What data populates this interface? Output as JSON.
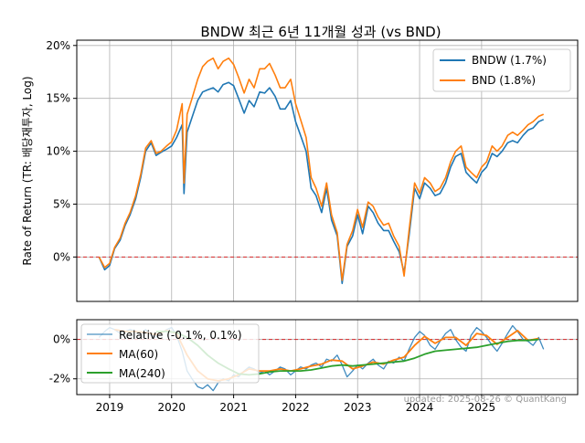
{
  "chart_data": [
    {
      "type": "line",
      "title": "BNDW 최근 6년 11개월 성과 (vs BND)",
      "ylabel": "Rate of Return (TR: 배당재투자, Log)",
      "yticks": [
        "0%",
        "5%",
        "10%",
        "15%",
        "20%"
      ],
      "ytick_values": [
        0,
        5,
        10,
        15,
        20
      ],
      "ylim": [
        -4.2,
        20.5
      ],
      "xlim": [
        2018.47,
        2026.55
      ],
      "grid": true,
      "legend": "top-right",
      "baseline": {
        "value": 0,
        "style": "red dashed"
      },
      "series": [
        {
          "name": "BNDW (1.7%)",
          "color": "#1f77b4",
          "x": [
            2018.83,
            2018.92,
            2019.0,
            2019.08,
            2019.17,
            2019.25,
            2019.33,
            2019.42,
            2019.5,
            2019.58,
            2019.67,
            2019.75,
            2019.83,
            2019.92,
            2020.0,
            2020.08,
            2020.17,
            2020.2,
            2020.25,
            2020.33,
            2020.42,
            2020.5,
            2020.58,
            2020.67,
            2020.75,
            2020.83,
            2020.92,
            2021.0,
            2021.08,
            2021.17,
            2021.25,
            2021.33,
            2021.42,
            2021.5,
            2021.58,
            2021.67,
            2021.75,
            2021.83,
            2021.92,
            2022.0,
            2022.08,
            2022.17,
            2022.25,
            2022.33,
            2022.42,
            2022.5,
            2022.58,
            2022.67,
            2022.75,
            2022.83,
            2022.92,
            2023.0,
            2023.08,
            2023.17,
            2023.25,
            2023.33,
            2023.42,
            2023.5,
            2023.58,
            2023.67,
            2023.75,
            2023.83,
            2023.92,
            2024.0,
            2024.08,
            2024.17,
            2024.25,
            2024.33,
            2024.42,
            2024.5,
            2024.58,
            2024.67,
            2024.75,
            2024.83,
            2024.92,
            2025.0,
            2025.08,
            2025.17,
            2025.25,
            2025.33,
            2025.42,
            2025.5,
            2025.58,
            2025.67,
            2025.75,
            2025.83,
            2025.92,
            2026.0
          ],
          "y": [
            0,
            -1.2,
            -0.8,
            0.8,
            1.6,
            3.0,
            4.0,
            5.5,
            7.5,
            10.0,
            10.8,
            9.6,
            9.9,
            10.2,
            10.5,
            11.3,
            12.5,
            6.0,
            11.8,
            13.2,
            14.8,
            15.6,
            15.8,
            16.0,
            15.6,
            16.3,
            16.5,
            16.2,
            15.0,
            13.6,
            14.8,
            14.2,
            15.6,
            15.5,
            16.0,
            15.2,
            14.0,
            14.0,
            14.8,
            12.8,
            11.5,
            10.0,
            6.5,
            5.8,
            4.2,
            6.5,
            3.5,
            2.0,
            -2.5,
            1.0,
            2.0,
            4.0,
            2.2,
            4.8,
            4.2,
            3.2,
            2.5,
            2.5,
            1.5,
            0.5,
            -1.5,
            2.0,
            6.5,
            5.5,
            7.0,
            6.5,
            5.8,
            6.0,
            7.0,
            8.5,
            9.5,
            9.8,
            8.0,
            7.5,
            7.0,
            8.0,
            8.5,
            9.8,
            9.5,
            10.0,
            10.8,
            11.0,
            10.8,
            11.5,
            12.0,
            12.2,
            12.8,
            13.0
          ]
        },
        {
          "name": "BND (1.8%)",
          "color": "#ff7f0e",
          "x": [
            2018.83,
            2018.92,
            2019.0,
            2019.08,
            2019.17,
            2019.25,
            2019.33,
            2019.42,
            2019.5,
            2019.58,
            2019.67,
            2019.75,
            2019.83,
            2019.92,
            2020.0,
            2020.08,
            2020.17,
            2020.2,
            2020.25,
            2020.33,
            2020.42,
            2020.5,
            2020.58,
            2020.67,
            2020.75,
            2020.83,
            2020.92,
            2021.0,
            2021.08,
            2021.17,
            2021.25,
            2021.33,
            2021.42,
            2021.5,
            2021.58,
            2021.67,
            2021.75,
            2021.83,
            2021.92,
            2022.0,
            2022.08,
            2022.17,
            2022.25,
            2022.33,
            2022.42,
            2022.5,
            2022.58,
            2022.67,
            2022.75,
            2022.83,
            2022.92,
            2023.0,
            2023.08,
            2023.17,
            2023.25,
            2023.33,
            2023.42,
            2023.5,
            2023.58,
            2023.67,
            2023.75,
            2023.83,
            2023.92,
            2024.0,
            2024.08,
            2024.17,
            2024.25,
            2024.33,
            2024.42,
            2024.5,
            2024.58,
            2024.67,
            2024.75,
            2024.83,
            2024.92,
            2025.0,
            2025.08,
            2025.17,
            2025.25,
            2025.33,
            2025.42,
            2025.5,
            2025.58,
            2025.67,
            2025.75,
            2025.83,
            2025.92,
            2026.0
          ],
          "y": [
            0,
            -1.0,
            -0.6,
            0.9,
            1.8,
            3.2,
            4.2,
            5.8,
            7.8,
            10.3,
            11.0,
            9.8,
            10.0,
            10.5,
            10.9,
            12.0,
            14.5,
            7.0,
            13.5,
            15.0,
            16.8,
            18.0,
            18.5,
            18.8,
            17.8,
            18.5,
            18.8,
            18.2,
            17.0,
            15.5,
            16.8,
            16.0,
            17.8,
            17.8,
            18.3,
            17.2,
            16.0,
            16.0,
            16.8,
            14.5,
            13.0,
            11.3,
            7.5,
            6.5,
            4.8,
            7.0,
            4.0,
            2.3,
            -2.2,
            1.2,
            2.5,
            4.5,
            2.8,
            5.2,
            4.8,
            3.8,
            3.0,
            3.2,
            2.0,
            1.0,
            -1.8,
            2.5,
            7.0,
            6.0,
            7.5,
            7.0,
            6.2,
            6.5,
            7.5,
            9.0,
            10.0,
            10.5,
            8.5,
            8.0,
            7.5,
            8.5,
            9.0,
            10.5,
            10.0,
            10.5,
            11.5,
            11.8,
            11.5,
            12.0,
            12.5,
            12.8,
            13.3,
            13.5
          ]
        }
      ]
    },
    {
      "type": "line",
      "yticks": [
        "0%",
        "-2%"
      ],
      "ytick_values": [
        0,
        -2
      ],
      "ylim": [
        -2.8,
        1.0
      ],
      "xlim": [
        2018.47,
        2026.55
      ],
      "xticks": [
        "2019",
        "2020",
        "2021",
        "2022",
        "2023",
        "2024",
        "2025"
      ],
      "xtick_values": [
        2019,
        2020,
        2021,
        2022,
        2023,
        2024,
        2025
      ],
      "grid": true,
      "legend": "top-left",
      "baseline": {
        "value": 0,
        "style": "red dashed"
      },
      "series": [
        {
          "name": "Relative (-0.1%, 0.1%)",
          "color": "#1f77b4",
          "x": [
            2018.83,
            2018.92,
            2019.0,
            2019.08,
            2019.17,
            2019.25,
            2019.33,
            2019.42,
            2019.5,
            2019.58,
            2019.67,
            2019.75,
            2019.83,
            2019.92,
            2020.0,
            2020.08,
            2020.17,
            2020.25,
            2020.33,
            2020.42,
            2020.5,
            2020.58,
            2020.67,
            2020.75,
            2020.83,
            2020.92,
            2021.0,
            2021.08,
            2021.17,
            2021.25,
            2021.33,
            2021.42,
            2021.5,
            2021.58,
            2021.67,
            2021.75,
            2021.83,
            2021.92,
            2022.0,
            2022.08,
            2022.17,
            2022.25,
            2022.33,
            2022.42,
            2022.5,
            2022.58,
            2022.67,
            2022.75,
            2022.83,
            2022.92,
            2023.0,
            2023.08,
            2023.17,
            2023.25,
            2023.33,
            2023.42,
            2023.5,
            2023.58,
            2023.67,
            2023.75,
            2023.83,
            2023.92,
            2024.0,
            2024.08,
            2024.17,
            2024.25,
            2024.33,
            2024.42,
            2024.5,
            2024.58,
            2024.67,
            2024.75,
            2024.83,
            2024.92,
            2025.0,
            2025.08,
            2025.17,
            2025.25,
            2025.33,
            2025.42,
            2025.5,
            2025.58,
            2025.67,
            2025.75,
            2025.83,
            2025.92,
            2026.0
          ],
          "y": [
            0.1,
            0.4,
            0.6,
            0.5,
            0.3,
            0.4,
            0.5,
            0.4,
            0.3,
            0.5,
            0.2,
            0.1,
            0.3,
            0.5,
            0.6,
            0.2,
            -0.6,
            -1.6,
            -2.0,
            -2.4,
            -2.5,
            -2.3,
            -2.6,
            -2.2,
            -2.0,
            -2.1,
            -1.8,
            -1.9,
            -1.6,
            -1.4,
            -1.5,
            -1.7,
            -1.6,
            -1.8,
            -1.6,
            -1.4,
            -1.5,
            -1.8,
            -1.6,
            -1.4,
            -1.5,
            -1.3,
            -1.2,
            -1.4,
            -1.0,
            -1.1,
            -0.8,
            -1.3,
            -1.9,
            -1.6,
            -1.3,
            -1.5,
            -1.2,
            -1.0,
            -1.3,
            -1.5,
            -1.1,
            -1.2,
            -0.9,
            -1.1,
            -0.5,
            0.1,
            0.4,
            0.2,
            -0.3,
            -0.5,
            -0.1,
            0.3,
            0.5,
            0.0,
            -0.4,
            -0.6,
            0.2,
            0.6,
            0.4,
            0.1,
            -0.3,
            -0.6,
            -0.2,
            0.3,
            0.7,
            0.4,
            0.0,
            -0.1,
            -0.3,
            0.1,
            -0.5
          ]
        },
        {
          "name": "MA(60)",
          "color": "#ff7f0e",
          "x": [
            2019.08,
            2019.25,
            2019.42,
            2019.58,
            2019.75,
            2019.92,
            2020.08,
            2020.25,
            2020.42,
            2020.58,
            2020.75,
            2020.92,
            2021.08,
            2021.25,
            2021.42,
            2021.58,
            2021.75,
            2021.92,
            2022.08,
            2022.25,
            2022.42,
            2022.58,
            2022.75,
            2022.92,
            2023.08,
            2023.25,
            2023.42,
            2023.58,
            2023.75,
            2023.92,
            2024.08,
            2024.25,
            2024.42,
            2024.58,
            2024.75,
            2024.92,
            2025.08,
            2025.25,
            2025.42,
            2025.58,
            2025.75,
            2025.92
          ],
          "y": [
            0.5,
            0.4,
            0.4,
            0.35,
            0.25,
            0.45,
            0.3,
            -0.8,
            -1.6,
            -2.0,
            -2.1,
            -2.0,
            -1.8,
            -1.5,
            -1.6,
            -1.6,
            -1.5,
            -1.6,
            -1.5,
            -1.35,
            -1.25,
            -1.05,
            -1.1,
            -1.5,
            -1.35,
            -1.15,
            -1.25,
            -1.05,
            -0.9,
            -0.3,
            0.15,
            -0.2,
            0.1,
            0.1,
            -0.3,
            0.3,
            0.2,
            -0.25,
            0.1,
            0.45,
            -0.05,
            0.05
          ]
        },
        {
          "name": "MA(240)",
          "color": "#2ca02c",
          "x": [
            2019.75,
            2019.92,
            2020.08,
            2020.25,
            2020.42,
            2020.58,
            2020.75,
            2020.92,
            2021.08,
            2021.25,
            2021.42,
            2021.58,
            2021.75,
            2021.92,
            2022.08,
            2022.25,
            2022.42,
            2022.58,
            2022.75,
            2022.92,
            2023.08,
            2023.25,
            2023.42,
            2023.58,
            2023.75,
            2023.92,
            2024.08,
            2024.25,
            2024.42,
            2024.58,
            2024.75,
            2024.92,
            2025.08,
            2025.25,
            2025.42,
            2025.58,
            2025.75,
            2025.92
          ],
          "y": [
            0.4,
            0.4,
            0.35,
            0.1,
            -0.3,
            -0.8,
            -1.2,
            -1.5,
            -1.75,
            -1.8,
            -1.75,
            -1.65,
            -1.6,
            -1.6,
            -1.6,
            -1.55,
            -1.45,
            -1.35,
            -1.3,
            -1.35,
            -1.3,
            -1.25,
            -1.2,
            -1.15,
            -1.1,
            -0.95,
            -0.75,
            -0.6,
            -0.55,
            -0.5,
            -0.45,
            -0.4,
            -0.3,
            -0.2,
            -0.1,
            -0.05,
            -0.05,
            0.0
          ]
        }
      ]
    }
  ],
  "footer": {
    "credit": "updated: 2025-08-26 © QuantKang"
  }
}
